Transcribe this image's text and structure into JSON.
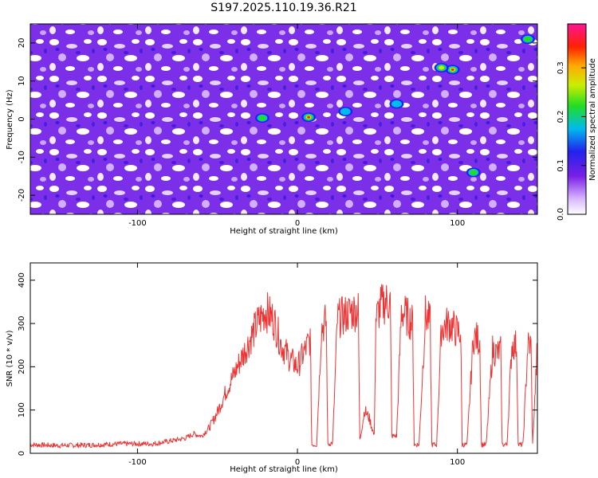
{
  "title": "S197.2025.110.19.36.R21",
  "chart_data": [
    {
      "type": "heatmap",
      "xlabel": "Height of straight line (km)",
      "ylabel": "Frequency (Hz)",
      "xlim": [
        -167,
        150
      ],
      "ylim": [
        -25,
        25
      ],
      "xticks": [
        -100,
        0,
        100
      ],
      "yticks": [
        -20,
        -10,
        0,
        10,
        20
      ],
      "colorbar": {
        "label": "Normalized spectral amplitude",
        "range": [
          0,
          0.39
        ],
        "ticks": [
          0.0,
          0.1,
          0.2,
          0.3
        ],
        "colormap": "white-purple-blue-cyan-green-yellow-red-magenta"
      },
      "hotspots": [
        {
          "x": 7,
          "y": 0.5,
          "amp": 0.37
        },
        {
          "x": 97,
          "y": 13,
          "amp": 0.36
        },
        {
          "x": 90,
          "y": 13.5,
          "amp": 0.28
        },
        {
          "x": 110,
          "y": -14,
          "amp": 0.2
        },
        {
          "x": -22,
          "y": 0.3,
          "amp": 0.2
        },
        {
          "x": 144,
          "y": 21,
          "amp": 0.18
        },
        {
          "x": 30,
          "y": 2,
          "amp": 0.12
        },
        {
          "x": 62,
          "y": 4,
          "amp": 0.11
        }
      ]
    },
    {
      "type": "line",
      "xlabel": "Height of straight line (km)",
      "ylabel": "SNR (10 * v/v)",
      "xlim": [
        -167,
        150
      ],
      "ylim": [
        0,
        440
      ],
      "xticks": [
        -100,
        0,
        100
      ],
      "yticks": [
        0,
        100,
        200,
        300,
        400
      ],
      "color": "#ee3333",
      "series": [
        {
          "x": [
            -167,
            -150,
            -130,
            -110,
            -90,
            -80,
            -70,
            -65,
            -60,
            -55,
            -50,
            -45,
            -40,
            -35,
            -30,
            -25,
            -20,
            -15,
            -10,
            -5,
            0,
            5,
            8,
            9,
            12,
            15,
            18,
            19,
            22,
            25,
            30,
            35,
            38,
            39,
            42,
            45,
            48,
            49,
            52,
            55,
            58,
            59,
            62,
            65,
            70,
            72,
            73,
            76,
            80,
            83,
            84,
            87,
            90,
            95,
            100,
            102,
            103,
            106,
            110,
            114,
            115,
            118,
            122,
            125,
            127,
            128,
            131,
            134,
            137,
            138,
            141,
            144,
            146,
            147,
            150
          ],
          "y": [
            20,
            18,
            19,
            22,
            22,
            28,
            35,
            45,
            40,
            60,
            95,
            140,
            180,
            220,
            260,
            300,
            330,
            310,
            250,
            220,
            200,
            240,
            265,
            20,
            20,
            290,
            305,
            20,
            25,
            310,
            320,
            330,
            330,
            30,
            100,
            80,
            40,
            310,
            340,
            350,
            350,
            40,
            40,
            330,
            310,
            300,
            20,
            20,
            320,
            300,
            20,
            20,
            290,
            300,
            280,
            280,
            20,
            20,
            270,
            260,
            20,
            20,
            240,
            230,
            240,
            20,
            20,
            250,
            250,
            20,
            20,
            250,
            250,
            20,
            250
          ]
        }
      ]
    }
  ]
}
